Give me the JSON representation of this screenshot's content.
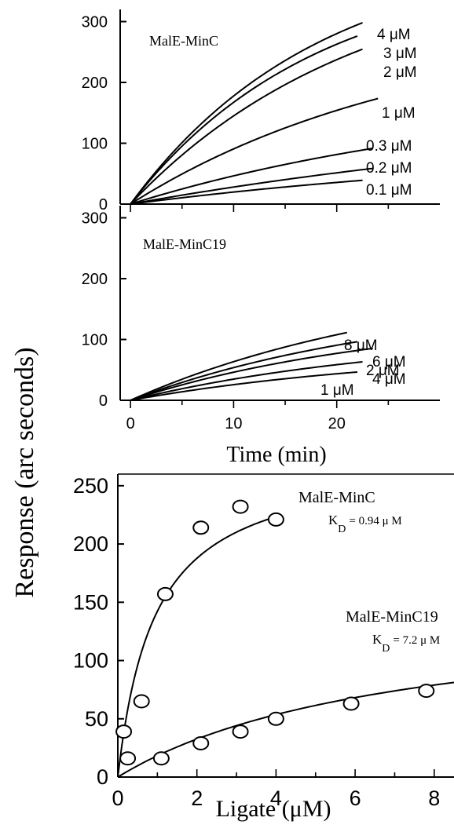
{
  "ylabel": "Response (arc seconds)",
  "chart_data": [
    {
      "type": "line",
      "panel": "top",
      "label": "MalE-MinC",
      "xlim": [
        -1,
        30
      ],
      "ylim": [
        0,
        320
      ],
      "xticks": [
        0,
        10,
        20
      ],
      "yticks": [
        0,
        100,
        200,
        300
      ],
      "ytick_labels": [
        "0",
        "100",
        "200",
        "300"
      ],
      "x_tick_labels_shown": false,
      "series": [
        {
          "name": "4 μM",
          "end_x": 22.5,
          "rmax": 420,
          "k": 0.055
        },
        {
          "name": "3 μM",
          "end_x": 22.0,
          "rmax": 390,
          "k": 0.056
        },
        {
          "name": "2 μM",
          "end_x": 22.5,
          "rmax": 400,
          "k": 0.045
        },
        {
          "name": "1 μM",
          "end_x": 24.0,
          "rmax": 300,
          "k": 0.036
        },
        {
          "name": "0.3 μM",
          "end_x": 23.5,
          "rmax": 190,
          "k": 0.028
        },
        {
          "name": "0.2 μM",
          "end_x": 23.5,
          "rmax": 170,
          "k": 0.018
        },
        {
          "name": "0.1 μM",
          "end_x": 22.5,
          "rmax": 100,
          "k": 0.022
        }
      ]
    },
    {
      "type": "line",
      "panel": "middle",
      "label": "MalE-MinC19",
      "xlim": [
        -1,
        30
      ],
      "ylim": [
        0,
        320
      ],
      "xticks": [
        0,
        10,
        20
      ],
      "xtick_labels": [
        "0",
        "10",
        "20"
      ],
      "yticks": [
        0,
        100,
        200,
        300
      ],
      "ytick_labels": [
        "0",
        "100",
        "200",
        "300"
      ],
      "xlabel": "Time (min)",
      "series": [
        {
          "name": "8 μM",
          "end_x": 21.0,
          "rmax": 210,
          "k": 0.036
        },
        {
          "name": "6 μM",
          "end_x": 22.0,
          "rmax": 170,
          "k": 0.038
        },
        {
          "name": "4 μM",
          "end_x": 23.5,
          "rmax": 140,
          "k": 0.04
        },
        {
          "name": "2 μM",
          "end_x": 22.5,
          "rmax": 110,
          "k": 0.038
        },
        {
          "name": "1 μM",
          "end_x": 22.0,
          "rmax": 85,
          "k": 0.036
        }
      ]
    },
    {
      "type": "scatter",
      "panel": "bottom",
      "xlim": [
        0,
        8.5
      ],
      "ylim": [
        0,
        260
      ],
      "xticks": [
        0,
        2,
        4,
        6,
        8
      ],
      "xtick_labels": [
        "0",
        "2",
        "4",
        "6",
        "8"
      ],
      "yticks": [
        0,
        50,
        100,
        150,
        200,
        250
      ],
      "ytick_labels": [
        "0",
        "50",
        "100",
        "150",
        "200",
        "250"
      ],
      "xlabel": "Ligate (μM)",
      "series": [
        {
          "name": "MalE-MinC",
          "kd_text": "K",
          "kd_sub": "D",
          "kd_value": "= 0.94 μ M",
          "points": [
            [
              0.15,
              39
            ],
            [
              0.6,
              65
            ],
            [
              1.2,
              157
            ],
            [
              2.1,
              214
            ],
            [
              3.1,
              232
            ],
            [
              4.0,
              221
            ]
          ],
          "fit": {
            "rmax": 276,
            "kd": 0.94,
            "x_end": 4.0
          }
        },
        {
          "name": "MalE-MinC19",
          "kd_text": "K",
          "kd_sub": "D",
          "kd_value": "= 7.2 μ M",
          "points": [
            [
              0.25,
              16
            ],
            [
              1.1,
              16
            ],
            [
              2.1,
              29
            ],
            [
              3.1,
              39
            ],
            [
              4.0,
              50
            ],
            [
              5.9,
              63
            ],
            [
              7.8,
              74
            ]
          ],
          "fit": {
            "rmax": 150,
            "kd": 7.2,
            "x_end": 8.5
          }
        }
      ]
    }
  ]
}
